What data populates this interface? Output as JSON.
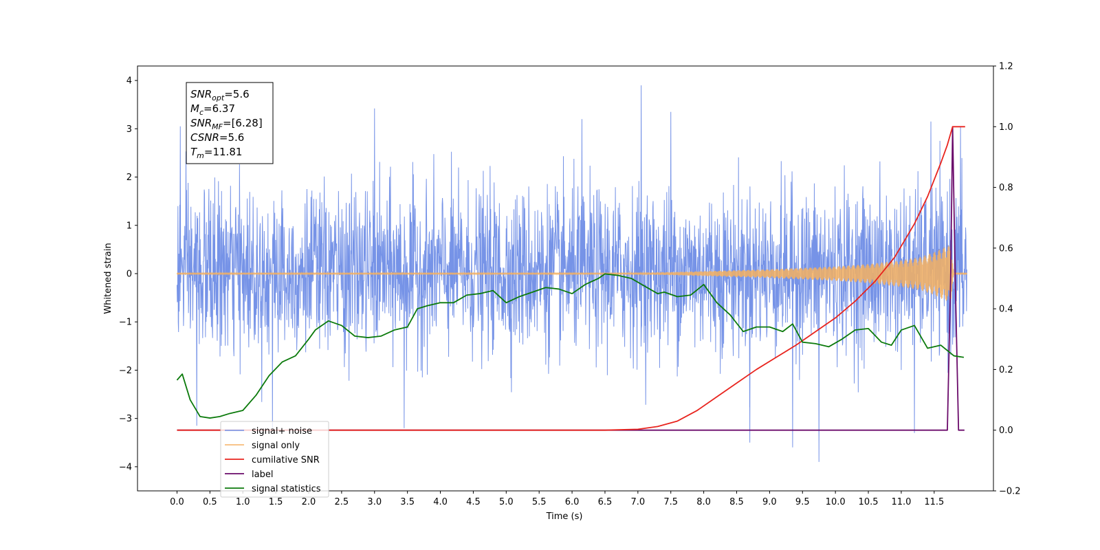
{
  "chart_data": {
    "type": "line",
    "xlabel": "Time (s)",
    "ylabel": "Whitened strain",
    "xlim": [
      -0.6,
      12.4
    ],
    "ylim": [
      -4.5,
      4.3
    ],
    "y2lim": [
      -0.2,
      1.2
    ],
    "x_ticks": [
      "0.0",
      "0.5",
      "1.0",
      "1.5",
      "2.0",
      "2.5",
      "3.0",
      "3.5",
      "4.0",
      "4.5",
      "5.0",
      "5.5",
      "6.0",
      "6.5",
      "7.0",
      "7.5",
      "8.0",
      "8.5",
      "9.0",
      "9.5",
      "10.0",
      "10.5",
      "11.0",
      "11.5"
    ],
    "y_ticks": [
      "4",
      "3",
      "2",
      "1",
      "0",
      "−1",
      "−2",
      "−3",
      "−4"
    ],
    "y2_ticks": [
      "1.2",
      "1.0",
      "0.8",
      "0.6",
      "0.4",
      "0.2",
      "0.0",
      "−0.2"
    ],
    "legend_placement": "lower-left",
    "grid": false,
    "info_box": [
      {
        "base": "SNR",
        "sub": "opt",
        "rest": "=5.6"
      },
      {
        "base": "M",
        "sub": "c",
        "rest": "=6.37"
      },
      {
        "base": "SNR",
        "sub": "MF",
        "rest": "=[6.28]"
      },
      {
        "base": "CSNR",
        "sub": "",
        "rest": "=5.6"
      },
      {
        "base": "T",
        "sub": "m",
        "rest": "=11.81"
      }
    ],
    "series": [
      {
        "name": "signal+ noise",
        "axis": "left",
        "color": "#6f8de6",
        "kind": "noise-band",
        "x_range": [
          0.0,
          12.0
        ],
        "typical_low": -1.7,
        "typical_high": 1.8,
        "peak_points": [
          [
            0.05,
            3.05
          ],
          [
            3.0,
            3.42
          ],
          [
            6.15,
            3.2
          ],
          [
            7.05,
            3.9
          ],
          [
            7.5,
            3.35
          ],
          [
            11.45,
            3.15
          ],
          [
            11.9,
            3.05
          ]
        ],
        "trough_points": [
          [
            0.3,
            -3.15
          ],
          [
            1.45,
            -3.2
          ],
          [
            3.45,
            -3.2
          ],
          [
            8.7,
            -3.5
          ],
          [
            9.35,
            -3.6
          ],
          [
            9.75,
            -3.9
          ],
          [
            11.2,
            -3.3
          ]
        ]
      },
      {
        "name": "signal only",
        "axis": "left",
        "color": "#f4b060",
        "kind": "chirp-envelope",
        "x": [
          0.0,
          7.0,
          7.5,
          8.0,
          8.5,
          9.0,
          9.5,
          10.0,
          10.5,
          11.0,
          11.3,
          11.5,
          11.65,
          11.75,
          11.8,
          12.0
        ],
        "amplitude": [
          0.02,
          0.02,
          0.03,
          0.05,
          0.07,
          0.09,
          0.12,
          0.15,
          0.2,
          0.28,
          0.35,
          0.45,
          0.55,
          0.6,
          0.02,
          0.02
        ]
      },
      {
        "name": "cumilative SNR",
        "axis": "right",
        "color": "#e8231d",
        "x": [
          0.0,
          6.5,
          7.0,
          7.3,
          7.6,
          7.9,
          8.2,
          8.5,
          8.8,
          9.1,
          9.4,
          9.7,
          10.0,
          10.3,
          10.6,
          10.9,
          11.2,
          11.4,
          11.6,
          11.7,
          11.78,
          11.82,
          11.97
        ],
        "y": [
          0.0,
          0.0,
          0.003,
          0.012,
          0.03,
          0.065,
          0.11,
          0.155,
          0.2,
          0.24,
          0.28,
          0.325,
          0.37,
          0.425,
          0.49,
          0.57,
          0.68,
          0.77,
          0.88,
          0.94,
          1.0,
          1.0,
          1.0
        ]
      },
      {
        "name": "label",
        "axis": "right",
        "color": "#6a0a6a",
        "x": [
          0.0,
          11.7,
          11.75,
          11.78,
          11.82,
          11.87,
          11.96
        ],
        "y": [
          0.0,
          0.0,
          0.5,
          1.0,
          0.5,
          0.0,
          0.0
        ]
      },
      {
        "name": "signal statistics",
        "axis": "right",
        "color": "#0b7a0b",
        "x": [
          0.0,
          0.08,
          0.2,
          0.35,
          0.5,
          0.65,
          0.8,
          1.0,
          1.2,
          1.4,
          1.6,
          1.8,
          2.0,
          2.1,
          2.3,
          2.5,
          2.7,
          2.9,
          3.1,
          3.3,
          3.5,
          3.65,
          3.8,
          4.0,
          4.2,
          4.4,
          4.6,
          4.8,
          5.0,
          5.2,
          5.4,
          5.6,
          5.8,
          6.0,
          6.2,
          6.4,
          6.5,
          6.7,
          6.9,
          7.1,
          7.3,
          7.4,
          7.6,
          7.8,
          8.0,
          8.2,
          8.4,
          8.6,
          8.8,
          9.0,
          9.2,
          9.35,
          9.5,
          9.7,
          9.9,
          10.1,
          10.3,
          10.5,
          10.7,
          10.85,
          11.0,
          11.2,
          11.4,
          11.6,
          11.8,
          11.95
        ],
        "y": [
          0.165,
          0.185,
          0.1,
          0.045,
          0.04,
          0.045,
          0.055,
          0.065,
          0.115,
          0.18,
          0.225,
          0.245,
          0.3,
          0.33,
          0.36,
          0.345,
          0.31,
          0.305,
          0.31,
          0.33,
          0.34,
          0.4,
          0.41,
          0.42,
          0.42,
          0.445,
          0.45,
          0.46,
          0.42,
          0.44,
          0.455,
          0.47,
          0.465,
          0.45,
          0.48,
          0.5,
          0.515,
          0.51,
          0.5,
          0.475,
          0.45,
          0.455,
          0.44,
          0.445,
          0.48,
          0.42,
          0.38,
          0.325,
          0.34,
          0.34,
          0.325,
          0.35,
          0.29,
          0.285,
          0.275,
          0.3,
          0.33,
          0.335,
          0.29,
          0.28,
          0.33,
          0.345,
          0.27,
          0.28,
          0.245,
          0.24
        ]
      }
    ]
  }
}
